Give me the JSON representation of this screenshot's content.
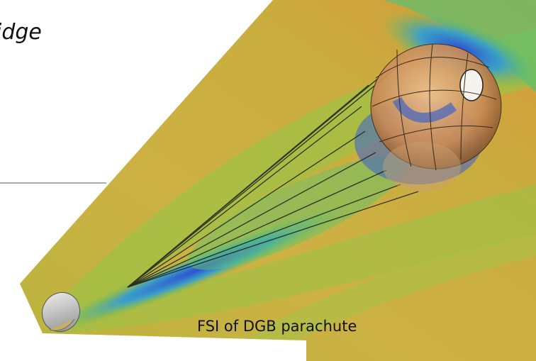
{
  "slide": {
    "title_fragment": "idge",
    "caption": "FSI of DGB parachute"
  }
}
